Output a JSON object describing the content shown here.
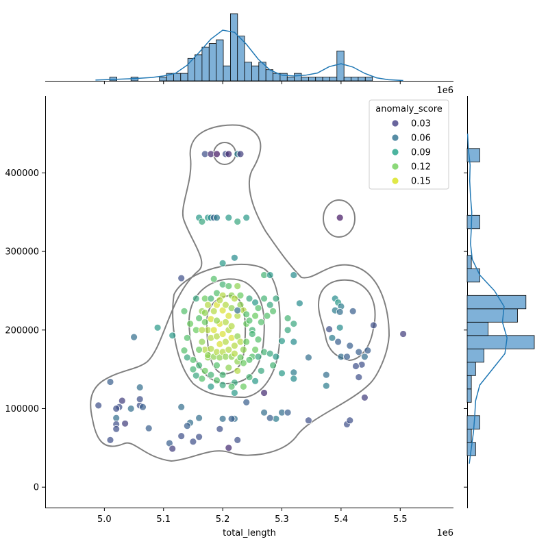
{
  "chart_data": {
    "type": "scatter",
    "subtype": "jointplot",
    "x_label": "total_length",
    "y_label": "",
    "x_offset_label": "1e6",
    "top_offset_label": "1e6",
    "x_ticks": [
      "5.0",
      "5.1",
      "5.2",
      "5.3",
      "5.4",
      "5.5"
    ],
    "x_tick_values": [
      5.0,
      5.1,
      5.2,
      5.3,
      5.4,
      5.5
    ],
    "y_ticks": [
      "0",
      "100000",
      "200000",
      "300000",
      "400000"
    ],
    "y_tick_values": [
      0,
      100000,
      200000,
      300000,
      400000
    ],
    "xlim": [
      4.9,
      5.59
    ],
    "ylim": [
      -26000,
      498000
    ],
    "grid": false,
    "legend": {
      "title": "anomaly_score",
      "placement": "upper-right",
      "entries": [
        {
          "label": "0.03",
          "color": "#433e85"
        },
        {
          "label": "0.06",
          "color": "#2d708e"
        },
        {
          "label": "0.09",
          "color": "#1fa187"
        },
        {
          "label": "0.12",
          "color": "#6ece58"
        },
        {
          "label": "0.15",
          "color": "#d8e219"
        }
      ]
    },
    "colormap": [
      "#440154",
      "#3b528b",
      "#21918c",
      "#5ec962",
      "#fde725"
    ],
    "score_range": [
      0.0,
      0.17
    ],
    "kde_color": "#808080",
    "hist_color": "#7fb1d8",
    "hist_edge": "#000000",
    "marginal_kde_color": "#1f77b4",
    "points": [
      [
        5.17,
        424000,
        0.04
      ],
      [
        5.18,
        424000,
        0.02
      ],
      [
        5.19,
        424000,
        0.01
      ],
      [
        5.205,
        424000,
        0.04
      ],
      [
        5.21,
        424000,
        0.02
      ],
      [
        5.225,
        424000,
        0.07
      ],
      [
        5.23,
        424000,
        0.03
      ],
      [
        5.16,
        343000,
        0.09
      ],
      [
        5.175,
        343000,
        0.09
      ],
      [
        5.18,
        343000,
        0.08
      ],
      [
        5.185,
        343000,
        0.05
      ],
      [
        5.19,
        343000,
        0.07
      ],
      [
        5.21,
        343000,
        0.09
      ],
      [
        5.225,
        338000,
        0.1
      ],
      [
        5.24,
        343000,
        0.09
      ],
      [
        5.165,
        338000,
        0.1
      ],
      [
        5.398,
        343000,
        0.01
      ],
      [
        5.13,
        266000,
        0.04
      ],
      [
        5.2,
        285000,
        0.09
      ],
      [
        5.22,
        292000,
        0.08
      ],
      [
        5.27,
        270000,
        0.11
      ],
      [
        5.28,
        270000,
        0.09
      ],
      [
        5.32,
        270000,
        0.08
      ],
      [
        5.29,
        240000,
        0.1
      ],
      [
        5.33,
        234000,
        0.08
      ],
      [
        5.39,
        240000,
        0.08
      ],
      [
        5.395,
        235000,
        0.09
      ],
      [
        5.4,
        230000,
        0.07
      ],
      [
        5.39,
        225000,
        0.07
      ],
      [
        5.398,
        223000,
        0.06
      ],
      [
        5.42,
        224000,
        0.05
      ],
      [
        5.398,
        203000,
        0.08
      ],
      [
        5.385,
        190000,
        0.07
      ],
      [
        5.395,
        185000,
        0.05
      ],
      [
        5.4,
        166000,
        0.06
      ],
      [
        5.41,
        166000,
        0.05
      ],
      [
        5.415,
        180000,
        0.05
      ],
      [
        5.43,
        172000,
        0.05
      ],
      [
        5.44,
        166000,
        0.06
      ],
      [
        5.445,
        174000,
        0.05
      ],
      [
        5.435,
        156000,
        0.04
      ],
      [
        5.455,
        206000,
        0.04
      ],
      [
        5.505,
        195000,
        0.03
      ],
      [
        5.38,
        201000,
        0.04
      ],
      [
        5.345,
        165000,
        0.06
      ],
      [
        5.375,
        143000,
        0.06
      ],
      [
        5.375,
        129000,
        0.07
      ],
      [
        5.425,
        154000,
        0.04
      ],
      [
        5.43,
        140000,
        0.04
      ],
      [
        5.44,
        114000,
        0.03
      ],
      [
        5.41,
        80000,
        0.04
      ],
      [
        5.415,
        85000,
        0.04
      ],
      [
        5.345,
        85000,
        0.04
      ],
      [
        5.3,
        95000,
        0.06
      ],
      [
        5.29,
        87000,
        0.07
      ],
      [
        5.31,
        95000,
        0.05
      ],
      [
        5.28,
        88000,
        0.05
      ],
      [
        5.27,
        95000,
        0.06
      ],
      [
        5.24,
        108000,
        0.05
      ],
      [
        5.27,
        120000,
        0.02
      ],
      [
        5.22,
        87000,
        0.06
      ],
      [
        5.215,
        87000,
        0.05
      ],
      [
        5.2,
        87000,
        0.06
      ],
      [
        5.195,
        74000,
        0.04
      ],
      [
        5.21,
        50000,
        0.02
      ],
      [
        5.225,
        60000,
        0.04
      ],
      [
        5.16,
        88000,
        0.06
      ],
      [
        5.145,
        82000,
        0.06
      ],
      [
        5.14,
        78000,
        0.05
      ],
      [
        5.13,
        102000,
        0.06
      ],
      [
        5.13,
        65000,
        0.04
      ],
      [
        5.15,
        58000,
        0.04
      ],
      [
        5.16,
        64000,
        0.04
      ],
      [
        5.11,
        56000,
        0.05
      ],
      [
        5.115,
        49000,
        0.03
      ],
      [
        5.075,
        75000,
        0.05
      ],
      [
        5.045,
        100000,
        0.06
      ],
      [
        5.06,
        104000,
        0.04
      ],
      [
        5.065,
        102000,
        0.05
      ],
      [
        5.06,
        112000,
        0.04
      ],
      [
        5.06,
        127000,
        0.06
      ],
      [
        5.03,
        110000,
        0.03
      ],
      [
        5.025,
        102000,
        0.04
      ],
      [
        5.02,
        100000,
        0.04
      ],
      [
        5.02,
        88000,
        0.06
      ],
      [
        5.02,
        80000,
        0.04
      ],
      [
        5.02,
        74000,
        0.04
      ],
      [
        5.035,
        81000,
        0.03
      ],
      [
        5.01,
        60000,
        0.04
      ],
      [
        4.99,
        104000,
        0.04
      ],
      [
        5.01,
        134000,
        0.05
      ],
      [
        5.05,
        191000,
        0.06
      ],
      [
        5.09,
        203000,
        0.09
      ],
      [
        5.115,
        193000,
        0.09
      ],
      [
        5.135,
        224000,
        0.12
      ],
      [
        5.155,
        240000,
        0.1
      ],
      [
        5.165,
        224000,
        0.14
      ],
      [
        5.17,
        240000,
        0.13
      ],
      [
        5.18,
        240000,
        0.11
      ],
      [
        5.185,
        265000,
        0.12
      ],
      [
        5.2,
        258000,
        0.11
      ],
      [
        5.21,
        256000,
        0.12
      ],
      [
        5.225,
        256000,
        0.14
      ],
      [
        5.19,
        247000,
        0.12
      ],
      [
        5.2,
        244000,
        0.15
      ],
      [
        5.215,
        244000,
        0.14
      ],
      [
        5.23,
        244000,
        0.13
      ],
      [
        5.245,
        240000,
        0.1
      ],
      [
        5.255,
        235000,
        0.09
      ],
      [
        5.26,
        228000,
        0.12
      ],
      [
        5.27,
        240000,
        0.11
      ],
      [
        5.28,
        232000,
        0.1
      ],
      [
        5.285,
        224000,
        0.12
      ],
      [
        5.275,
        218000,
        0.12
      ],
      [
        5.265,
        210000,
        0.12
      ],
      [
        5.255,
        218000,
        0.13
      ],
      [
        5.25,
        200000,
        0.11
      ],
      [
        5.26,
        188000,
        0.12
      ],
      [
        5.255,
        175000,
        0.13
      ],
      [
        5.25,
        166000,
        0.12
      ],
      [
        5.26,
        166000,
        0.1
      ],
      [
        5.27,
        172000,
        0.11
      ],
      [
        5.28,
        170000,
        0.1
      ],
      [
        5.29,
        166000,
        0.09
      ],
      [
        5.285,
        155000,
        0.11
      ],
      [
        5.265,
        148000,
        0.1
      ],
      [
        5.255,
        135000,
        0.09
      ],
      [
        5.245,
        140000,
        0.11
      ],
      [
        5.235,
        128000,
        0.13
      ],
      [
        5.22,
        133000,
        0.1
      ],
      [
        5.22,
        120000,
        0.09
      ],
      [
        5.215,
        128000,
        0.12
      ],
      [
        5.2,
        143000,
        0.11
      ],
      [
        5.2,
        130000,
        0.1
      ],
      [
        5.19,
        155000,
        0.12
      ],
      [
        5.18,
        128000,
        0.09
      ],
      [
        5.175,
        165000,
        0.14
      ],
      [
        5.17,
        148000,
        0.13
      ],
      [
        5.16,
        155000,
        0.11
      ],
      [
        5.15,
        162000,
        0.12
      ],
      [
        5.14,
        165000,
        0.1
      ],
      [
        5.135,
        174000,
        0.12
      ],
      [
        5.14,
        190000,
        0.12
      ],
      [
        5.145,
        208000,
        0.13
      ],
      [
        5.155,
        200000,
        0.13
      ],
      [
        5.16,
        215000,
        0.12
      ],
      [
        5.17,
        222000,
        0.14
      ],
      [
        5.175,
        232000,
        0.15
      ],
      [
        5.18,
        214000,
        0.16
      ],
      [
        5.185,
        224000,
        0.15
      ],
      [
        5.19,
        232000,
        0.16
      ],
      [
        5.195,
        238000,
        0.15
      ],
      [
        5.2,
        225000,
        0.16
      ],
      [
        5.205,
        232000,
        0.15
      ],
      [
        5.21,
        218000,
        0.16
      ],
      [
        5.215,
        228000,
        0.14
      ],
      [
        5.22,
        240000,
        0.15
      ],
      [
        5.225,
        218000,
        0.15
      ],
      [
        5.23,
        232000,
        0.14
      ],
      [
        5.235,
        225000,
        0.15
      ],
      [
        5.24,
        208000,
        0.13
      ],
      [
        5.24,
        220000,
        0.12
      ],
      [
        5.225,
        225000,
        0.06
      ],
      [
        5.175,
        200000,
        0.15
      ],
      [
        5.18,
        190000,
        0.15
      ],
      [
        5.185,
        200000,
        0.16
      ],
      [
        5.19,
        192000,
        0.15
      ],
      [
        5.195,
        182000,
        0.16
      ],
      [
        5.2,
        195000,
        0.16
      ],
      [
        5.205,
        185000,
        0.15
      ],
      [
        5.21,
        200000,
        0.15
      ],
      [
        5.215,
        190000,
        0.16
      ],
      [
        5.22,
        180000,
        0.15
      ],
      [
        5.225,
        192000,
        0.14
      ],
      [
        5.23,
        185000,
        0.15
      ],
      [
        5.235,
        175000,
        0.14
      ],
      [
        5.24,
        185000,
        0.13
      ],
      [
        5.165,
        185000,
        0.14
      ],
      [
        5.17,
        175000,
        0.15
      ],
      [
        5.175,
        168000,
        0.14
      ],
      [
        5.18,
        176000,
        0.15
      ],
      [
        5.185,
        166000,
        0.14
      ],
      [
        5.19,
        172000,
        0.15
      ],
      [
        5.195,
        165000,
        0.14
      ],
      [
        5.2,
        172000,
        0.15
      ],
      [
        5.205,
        166000,
        0.14
      ],
      [
        5.21,
        175000,
        0.15
      ],
      [
        5.215,
        166000,
        0.14
      ],
      [
        5.22,
        170000,
        0.15
      ],
      [
        5.225,
        160000,
        0.14
      ],
      [
        5.23,
        165000,
        0.13
      ],
      [
        5.235,
        158000,
        0.13
      ],
      [
        5.245,
        162000,
        0.12
      ],
      [
        5.165,
        200000,
        0.15
      ],
      [
        5.16,
        175000,
        0.13
      ],
      [
        5.21,
        152000,
        0.14
      ],
      [
        5.225,
        148000,
        0.15
      ],
      [
        5.195,
        208000,
        0.16
      ],
      [
        5.205,
        210000,
        0.15
      ],
      [
        5.215,
        205000,
        0.15
      ],
      [
        5.19,
        212000,
        0.14
      ],
      [
        5.31,
        215000,
        0.11
      ],
      [
        5.32,
        208000,
        0.1
      ],
      [
        5.31,
        200000,
        0.1
      ],
      [
        5.3,
        186000,
        0.09
      ],
      [
        5.32,
        185000,
        0.08
      ],
      [
        5.32,
        146000,
        0.07
      ],
      [
        5.32,
        138000,
        0.08
      ],
      [
        5.3,
        145000,
        0.09
      ],
      [
        5.15,
        150000,
        0.11
      ],
      [
        5.155,
        142000,
        0.1
      ],
      [
        5.165,
        138000,
        0.12
      ],
      [
        5.18,
        143000,
        0.11
      ],
      [
        5.19,
        136000,
        0.12
      ],
      [
        5.25,
        195000,
        0.11
      ],
      [
        5.245,
        212000,
        0.12
      ],
      [
        5.17,
        210000,
        0.13
      ]
    ],
    "top_hist": {
      "bins": [
        4.985,
        4.997,
        5.009,
        5.021,
        5.033,
        5.045,
        5.057,
        5.069,
        5.081,
        5.093,
        5.105,
        5.117,
        5.129,
        5.141,
        5.153,
        5.165,
        5.177,
        5.189,
        5.201,
        5.213,
        5.225,
        5.237,
        5.249,
        5.261,
        5.273,
        5.285,
        5.297,
        5.309,
        5.321,
        5.333,
        5.345,
        5.357,
        5.369,
        5.381,
        5.393,
        5.405,
        5.417,
        5.429,
        5.441,
        5.453,
        5.465,
        5.477,
        5.489,
        5.501
      ],
      "counts": [
        0,
        0,
        1,
        0,
        0,
        1,
        0,
        0,
        0,
        1,
        2,
        2,
        2,
        6,
        7,
        9,
        10,
        11,
        4,
        18,
        12,
        5,
        4,
        5,
        3,
        2,
        2,
        1,
        2,
        1,
        1,
        1,
        1,
        1,
        8,
        1,
        1,
        1,
        1,
        0,
        0,
        0,
        0
      ],
      "kde_x": [
        4.985,
        5.02,
        5.05,
        5.08,
        5.1,
        5.12,
        5.14,
        5.16,
        5.18,
        5.2,
        5.22,
        5.24,
        5.26,
        5.28,
        5.3,
        5.32,
        5.34,
        5.36,
        5.38,
        5.4,
        5.42,
        5.44,
        5.46,
        5.48,
        5.505
      ],
      "kde_y": [
        0.2,
        0.4,
        0.6,
        0.9,
        1.3,
        2.0,
        4.2,
        7.6,
        11.2,
        13.6,
        13.0,
        9.8,
        5.8,
        2.9,
        1.5,
        1.3,
        1.5,
        2.1,
        3.8,
        4.6,
        3.7,
        2.0,
        0.8,
        0.3,
        0.1
      ]
    },
    "right_hist": {
      "bins": [
        40000,
        57000,
        74000,
        91000,
        108000,
        125000,
        142000,
        159000,
        176000,
        193000,
        210000,
        227000,
        244000,
        261000,
        278000,
        295000,
        312000,
        329000,
        346000,
        363000,
        380000,
        397000,
        414000,
        431000
      ],
      "counts": [
        2,
        1,
        3,
        0,
        1,
        1,
        2,
        4,
        16,
        5,
        12,
        14,
        0,
        3,
        1,
        0,
        0,
        3,
        0,
        0,
        0,
        0,
        3
      ],
      "kde_y_vals": [
        30000,
        50000,
        70000,
        90000,
        110000,
        130000,
        150000,
        170000,
        190000,
        210000,
        230000,
        250000,
        270000,
        290000,
        310000,
        330000,
        350000,
        370000,
        390000,
        410000,
        430000,
        450000
      ],
      "kde_x_vals": [
        0.5,
        1.0,
        1.5,
        1.8,
        2.0,
        3.0,
        6.0,
        9.0,
        9.5,
        8.4,
        8.8,
        6.5,
        3.0,
        1.2,
        0.8,
        1.0,
        1.1,
        0.8,
        0.6,
        0.7,
        0.3,
        0.1
      ]
    }
  }
}
